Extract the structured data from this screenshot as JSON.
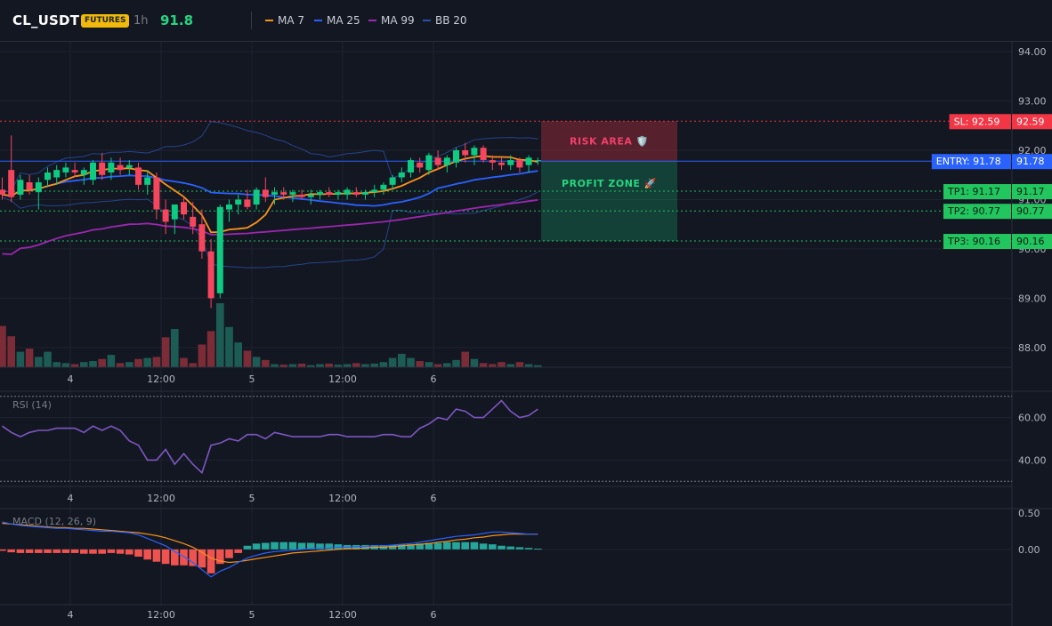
{
  "header": {
    "symbol": "CL_USDT",
    "badge": "FUTURES",
    "timeframe": "1h",
    "price": "91.8",
    "legend": [
      {
        "label": "MA 7",
        "color": "#f7931a"
      },
      {
        "label": "MA 25",
        "color": "#2962ff"
      },
      {
        "label": "MA 99",
        "color": "#9c27b0"
      },
      {
        "label": "BB 20",
        "color": "#2a4fa8"
      }
    ]
  },
  "price_axis": {
    "min": 87.6,
    "max": 94.2,
    "ticks": [
      "94.00",
      "93.00",
      "92.00",
      "91.00",
      "90.00",
      "89.00",
      "88.00"
    ],
    "tick_values": [
      94,
      93,
      92,
      91,
      90,
      89,
      88
    ]
  },
  "levels": [
    {
      "name": "sl",
      "label": "SL: 92.59",
      "value": 92.59,
      "value_label": "92.59",
      "color": "#f23645",
      "line": "dotted"
    },
    {
      "name": "entry",
      "label": "ENTRY: 91.78",
      "value": 91.78,
      "value_label": "91.78",
      "color": "#2962ff",
      "line": "solid"
    },
    {
      "name": "tp1",
      "label": "TP1: 91.17",
      "value": 91.17,
      "value_label": "91.17",
      "color": "#22c55e",
      "line": "dotted"
    },
    {
      "name": "tp2",
      "label": "TP2: 90.77",
      "value": 90.77,
      "value_label": "90.77",
      "color": "#22c55e",
      "line": "dotted"
    },
    {
      "name": "tp3",
      "label": "TP3: 90.16",
      "value": 90.16,
      "value_label": "90.16",
      "color": "#22c55e",
      "line": "dotted"
    }
  ],
  "zones": {
    "risk_label": "RISK AREA 🛡️",
    "profit_label": "PROFIT ZONE 🚀"
  },
  "time_axis": {
    "labels": [
      "4",
      "12:00",
      "5",
      "12:00",
      "6"
    ],
    "bar_index": [
      7.5,
      17.5,
      27.5,
      37.5,
      47.5
    ]
  },
  "rsi": {
    "title": "RSI (14)",
    "ticks": [
      "60.00",
      "40.00"
    ],
    "tick_values": [
      60,
      40
    ],
    "range": [
      28,
      72
    ],
    "levels": [
      70,
      30
    ],
    "values": [
      56,
      53,
      51,
      53,
      54,
      54,
      55,
      55,
      55,
      53,
      56,
      54,
      56,
      54,
      49,
      47,
      40,
      40,
      45,
      38,
      43,
      38,
      34,
      47,
      48,
      50,
      49,
      52,
      52,
      50,
      53,
      52,
      51,
      51,
      51,
      51,
      52,
      52,
      51,
      51,
      51,
      51,
      52,
      52,
      51,
      51,
      55,
      57,
      60,
      59,
      64,
      63,
      60,
      60,
      64,
      68,
      63,
      60,
      61,
      64
    ]
  },
  "macd": {
    "title": "MACD (12, 26, 9)",
    "ticks": [
      "0.50",
      "0.00"
    ],
    "tick_values": [
      0.5,
      0
    ],
    "range": [
      -0.75,
      0.55
    ],
    "macd_line": [
      0.38,
      0.35,
      0.33,
      0.32,
      0.31,
      0.3,
      0.29,
      0.29,
      0.28,
      0.27,
      0.26,
      0.25,
      0.25,
      0.24,
      0.23,
      0.2,
      0.15,
      0.1,
      0.05,
      -0.03,
      -0.1,
      -0.18,
      -0.28,
      -0.38,
      -0.3,
      -0.25,
      -0.18,
      -0.12,
      -0.08,
      -0.05,
      -0.03,
      -0.02,
      -0.01,
      0.0,
      0.01,
      0.02,
      0.02,
      0.03,
      0.03,
      0.04,
      0.04,
      0.05,
      0.05,
      0.06,
      0.07,
      0.08,
      0.1,
      0.12,
      0.14,
      0.16,
      0.18,
      0.19,
      0.2,
      0.22,
      0.24,
      0.24,
      0.23,
      0.22,
      0.21,
      0.21
    ],
    "signal_line": [
      0.36,
      0.35,
      0.34,
      0.33,
      0.32,
      0.31,
      0.3,
      0.3,
      0.29,
      0.29,
      0.28,
      0.27,
      0.26,
      0.25,
      0.24,
      0.23,
      0.21,
      0.19,
      0.16,
      0.12,
      0.08,
      0.03,
      -0.04,
      -0.12,
      -0.16,
      -0.18,
      -0.17,
      -0.15,
      -0.13,
      -0.11,
      -0.09,
      -0.07,
      -0.05,
      -0.04,
      -0.03,
      -0.02,
      -0.01,
      0.0,
      0.01,
      0.01,
      0.02,
      0.03,
      0.03,
      0.04,
      0.05,
      0.06,
      0.07,
      0.08,
      0.1,
      0.11,
      0.13,
      0.14,
      0.16,
      0.17,
      0.19,
      0.2,
      0.21,
      0.21,
      0.21,
      0.21
    ],
    "histogram": [
      -0.02,
      -0.04,
      -0.05,
      -0.05,
      -0.05,
      -0.05,
      -0.05,
      -0.05,
      -0.05,
      -0.06,
      -0.06,
      -0.06,
      -0.05,
      -0.06,
      -0.07,
      -0.1,
      -0.14,
      -0.17,
      -0.2,
      -0.22,
      -0.22,
      -0.23,
      -0.25,
      -0.33,
      -0.2,
      -0.12,
      -0.05,
      0.05,
      0.08,
      0.09,
      0.1,
      0.1,
      0.1,
      0.09,
      0.09,
      0.08,
      0.08,
      0.07,
      0.06,
      0.06,
      0.06,
      0.06,
      0.06,
      0.06,
      0.07,
      0.07,
      0.08,
      0.09,
      0.09,
      0.1,
      0.1,
      0.1,
      0.1,
      0.08,
      0.07,
      0.05,
      0.04,
      0.03,
      0.02,
      0.01
    ]
  },
  "chart_data": {
    "type": "candlestick",
    "series": [
      {
        "name": "Price",
        "ohlc": [
          [
            91.2,
            91.45,
            91.0,
            91.1
          ],
          [
            91.6,
            92.3,
            90.95,
            91.05
          ],
          [
            91.1,
            91.5,
            91.0,
            91.4
          ],
          [
            91.35,
            91.5,
            91.1,
            91.2
          ],
          [
            91.15,
            91.45,
            90.8,
            91.35
          ],
          [
            91.4,
            91.65,
            91.25,
            91.55
          ],
          [
            91.45,
            91.7,
            91.3,
            91.6
          ],
          [
            91.55,
            91.75,
            91.45,
            91.65
          ],
          [
            91.6,
            91.75,
            91.45,
            91.55
          ],
          [
            91.5,
            91.65,
            91.3,
            91.6
          ],
          [
            91.4,
            91.8,
            91.3,
            91.75
          ],
          [
            91.75,
            91.95,
            91.4,
            91.5
          ],
          [
            91.55,
            91.85,
            91.4,
            91.75
          ],
          [
            91.7,
            91.85,
            91.5,
            91.6
          ],
          [
            91.65,
            91.8,
            91.5,
            91.7
          ],
          [
            91.65,
            91.75,
            91.2,
            91.3
          ],
          [
            91.3,
            91.6,
            91.1,
            91.45
          ],
          [
            91.45,
            91.55,
            90.6,
            90.8
          ],
          [
            90.8,
            91.0,
            90.3,
            90.55
          ],
          [
            90.6,
            90.9,
            90.3,
            90.9
          ],
          [
            90.95,
            91.05,
            90.6,
            90.7
          ],
          [
            90.65,
            90.95,
            90.3,
            90.45
          ],
          [
            90.5,
            90.8,
            89.8,
            89.95
          ],
          [
            89.95,
            90.2,
            88.8,
            89.0
          ],
          [
            89.1,
            90.9,
            89.0,
            90.85
          ],
          [
            90.8,
            91.0,
            90.55,
            90.9
          ],
          [
            90.9,
            91.1,
            90.7,
            91.0
          ],
          [
            91.0,
            91.2,
            90.8,
            90.85
          ],
          [
            90.9,
            91.25,
            90.8,
            91.2
          ],
          [
            91.2,
            91.45,
            90.95,
            91.05
          ],
          [
            91.1,
            91.25,
            90.9,
            91.15
          ],
          [
            91.15,
            91.25,
            91.0,
            91.1
          ],
          [
            91.1,
            91.2,
            90.95,
            91.15
          ],
          [
            91.1,
            91.2,
            91.0,
            91.05
          ],
          [
            91.05,
            91.2,
            90.9,
            91.1
          ],
          [
            91.1,
            91.2,
            91.0,
            91.15
          ],
          [
            91.15,
            91.25,
            91.05,
            91.1
          ],
          [
            91.1,
            91.2,
            91.0,
            91.15
          ],
          [
            91.1,
            91.25,
            91.0,
            91.2
          ],
          [
            91.15,
            91.25,
            91.05,
            91.1
          ],
          [
            91.1,
            91.2,
            91.0,
            91.15
          ],
          [
            91.15,
            91.3,
            91.05,
            91.2
          ],
          [
            91.2,
            91.35,
            91.1,
            91.3
          ],
          [
            91.3,
            91.5,
            91.2,
            91.45
          ],
          [
            91.45,
            91.65,
            91.35,
            91.55
          ],
          [
            91.55,
            91.85,
            91.45,
            91.8
          ],
          [
            91.75,
            91.85,
            91.55,
            91.65
          ],
          [
            91.6,
            91.95,
            91.5,
            91.9
          ],
          [
            91.85,
            92.0,
            91.6,
            91.7
          ],
          [
            91.7,
            91.9,
            91.55,
            91.85
          ],
          [
            91.75,
            92.05,
            91.65,
            92.0
          ],
          [
            92.0,
            92.15,
            91.75,
            91.9
          ],
          [
            91.9,
            92.1,
            91.7,
            92.05
          ],
          [
            92.05,
            92.1,
            91.75,
            91.8
          ],
          [
            91.8,
            91.9,
            91.6,
            91.75
          ],
          [
            91.75,
            91.85,
            91.6,
            91.7
          ],
          [
            91.7,
            91.9,
            91.6,
            91.8
          ],
          [
            91.8,
            91.85,
            91.55,
            91.65
          ],
          [
            91.7,
            91.9,
            91.55,
            91.85
          ],
          [
            91.8,
            91.85,
            91.7,
            91.8
          ]
        ]
      },
      {
        "name": "Volume",
        "values": [
          4,
          3,
          1.5,
          1.8,
          1,
          1.5,
          0.5,
          0.4,
          0.3,
          0.5,
          0.6,
          0.8,
          1.2,
          0.4,
          0.5,
          0.8,
          0.9,
          1.0,
          2.9,
          3.7,
          0.9,
          0.4,
          2.2,
          3.5,
          6.2,
          3.9,
          2.4,
          1.6,
          1.0,
          0.7,
          0.3,
          0.25,
          0.3,
          0.35,
          0.2,
          0.3,
          0.35,
          0.25,
          0.3,
          0.4,
          0.3,
          0.35,
          0.5,
          0.9,
          1.3,
          0.9,
          0.6,
          0.5,
          0.3,
          0.4,
          0.7,
          1.5,
          0.8,
          0.4,
          0.3,
          0.5,
          0.3,
          0.5,
          0.3,
          0.2
        ]
      }
    ]
  }
}
